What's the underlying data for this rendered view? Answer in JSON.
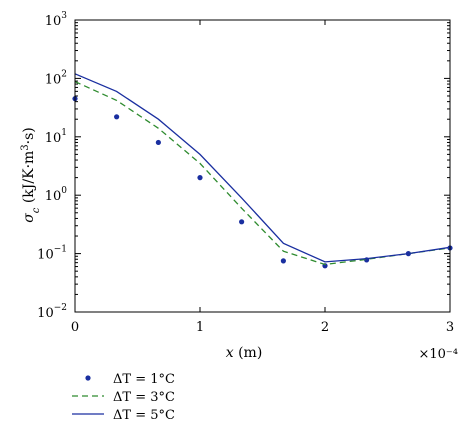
{
  "chart_data": {
    "type": "line",
    "xlabel": "x (m)",
    "x_multiplier": "×10⁻⁴",
    "ylabel": "σ_c (kJ/K·m³·s)",
    "xlim": [
      0,
      3
    ],
    "ylim": [
      0.01,
      1000
    ],
    "yscale": "log",
    "grid": false,
    "legend_position": "below",
    "x_ticks": [
      {
        "value": 0,
        "label": "0"
      },
      {
        "value": 1,
        "label": "1"
      },
      {
        "value": 2,
        "label": "2"
      },
      {
        "value": 3,
        "label": "3"
      }
    ],
    "y_ticks": [
      {
        "value": 0.01,
        "base": "10",
        "exp": "−2"
      },
      {
        "value": 0.1,
        "base": "10",
        "exp": "−1"
      },
      {
        "value": 1,
        "base": "10",
        "exp": "0"
      },
      {
        "value": 10,
        "base": "10",
        "exp": "1"
      },
      {
        "value": 100,
        "base": "10",
        "exp": "2"
      },
      {
        "value": 1000,
        "base": "10",
        "exp": "3"
      }
    ],
    "series": [
      {
        "name": "ΔT = 1°C",
        "style": "markers",
        "color": "#1a2fa0",
        "x": [
          0,
          0.333,
          0.667,
          1.0,
          1.333,
          1.667,
          2.0,
          2.333,
          2.667,
          3.0
        ],
        "y": [
          45,
          22,
          8.0,
          2.0,
          0.35,
          0.075,
          0.062,
          0.078,
          0.1,
          0.125
        ]
      },
      {
        "name": "ΔT = 3°C",
        "style": "dashed",
        "color": "#2e8b2e",
        "x": [
          0,
          0.333,
          0.667,
          1.0,
          1.333,
          1.667,
          2.0,
          2.333,
          2.667,
          3.0
        ],
        "y": [
          88,
          42,
          14,
          3.5,
          0.6,
          0.11,
          0.065,
          0.08,
          0.1,
          0.125
        ]
      },
      {
        "name": "ΔT = 5°C",
        "style": "solid",
        "color": "#1a2fa0",
        "x": [
          0,
          0.333,
          0.667,
          1.0,
          1.333,
          1.667,
          2.0,
          2.333,
          2.667,
          3.0
        ],
        "y": [
          120,
          60,
          20,
          5.0,
          0.9,
          0.15,
          0.072,
          0.082,
          0.1,
          0.128
        ]
      }
    ]
  }
}
